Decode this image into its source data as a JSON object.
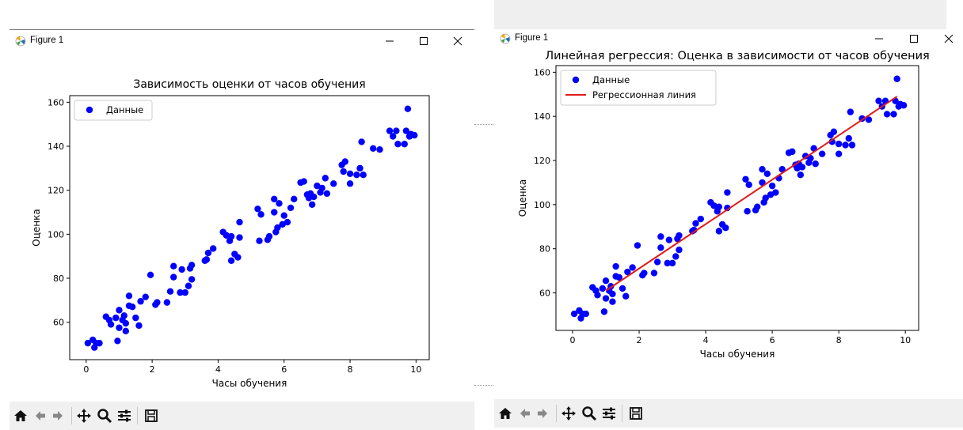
{
  "left_window": {
    "title": "Figure 1",
    "plot_title": "Зависимость оценки от часов обучения",
    "xlabel": "Часы обучения",
    "ylabel": "Оценка",
    "legend": [
      "Данные"
    ]
  },
  "right_window": {
    "title": "Figure 1",
    "plot_title": "Линейная регрессия: Оценка в зависимости от часов обучения",
    "xlabel": "Часы обучения",
    "ylabel": "Оценка",
    "legend": [
      "Данные",
      "Регрессионная линия"
    ]
  },
  "toolbar": [
    "home-icon",
    "back-icon",
    "forward-icon",
    "pan-icon",
    "zoom-icon",
    "configure-icon",
    "save-icon"
  ],
  "colors": {
    "points": "#0000ff",
    "regression": "#e31a1c",
    "toolbar_bg": "#f0f0f0"
  },
  "chart_data": [
    {
      "type": "scatter",
      "title": "Зависимость оценки от часов обучения",
      "xlabel": "Часы обучения",
      "ylabel": "Оценка",
      "xlim": [
        -0.5,
        10.4
      ],
      "ylim": [
        43,
        163
      ],
      "xticks": [
        0,
        2,
        4,
        6,
        8,
        10
      ],
      "yticks": [
        60,
        80,
        100,
        120,
        140,
        160
      ],
      "legend_position": "top-left",
      "series": [
        {
          "name": "Данные",
          "points": [
            [
              0.05,
              50.5
            ],
            [
              0.2,
              52
            ],
            [
              0.25,
              48.5
            ],
            [
              0.3,
              50.5
            ],
            [
              0.4,
              50.5
            ],
            [
              0.6,
              62.5
            ],
            [
              0.7,
              61
            ],
            [
              0.75,
              59
            ],
            [
              0.9,
              62
            ],
            [
              0.95,
              51.5
            ],
            [
              1.0,
              65.5
            ],
            [
              1.0,
              57.5
            ],
            [
              1.1,
              61
            ],
            [
              1.15,
              63
            ],
            [
              1.2,
              59.5
            ],
            [
              1.2,
              56
            ],
            [
              1.3,
              72
            ],
            [
              1.3,
              67.5
            ],
            [
              1.4,
              67
            ],
            [
              1.5,
              62
            ],
            [
              1.6,
              58.5
            ],
            [
              1.65,
              69.5
            ],
            [
              1.8,
              71.5
            ],
            [
              1.95,
              81.5
            ],
            [
              2.1,
              68
            ],
            [
              2.15,
              69
            ],
            [
              2.45,
              69
            ],
            [
              2.55,
              74
            ],
            [
              2.65,
              85.5
            ],
            [
              2.65,
              80.5
            ],
            [
              2.85,
              73.5
            ],
            [
              2.9,
              84
            ],
            [
              3.0,
              73.5
            ],
            [
              3.1,
              76.5
            ],
            [
              3.15,
              84.5
            ],
            [
              3.2,
              79.5
            ],
            [
              3.2,
              86
            ],
            [
              3.6,
              88
            ],
            [
              3.65,
              88.5
            ],
            [
              3.7,
              91.5
            ],
            [
              3.85,
              93.5
            ],
            [
              4.15,
              101
            ],
            [
              4.25,
              99.5
            ],
            [
              4.35,
              97
            ],
            [
              4.4,
              99
            ],
            [
              4.4,
              88
            ],
            [
              4.5,
              91
            ],
            [
              4.6,
              89.5
            ],
            [
              4.65,
              98.5
            ],
            [
              4.65,
              105.5
            ],
            [
              5.2,
              111.5
            ],
            [
              5.25,
              97
            ],
            [
              5.3,
              109
            ],
            [
              5.5,
              97.5
            ],
            [
              5.55,
              99
            ],
            [
              5.7,
              110
            ],
            [
              5.7,
              116
            ],
            [
              5.75,
              101
            ],
            [
              5.8,
              103
            ],
            [
              5.85,
              114
            ],
            [
              5.95,
              104.5
            ],
            [
              6.0,
              108.5
            ],
            [
              6.1,
              105.5
            ],
            [
              6.2,
              112
            ],
            [
              6.3,
              116
            ],
            [
              6.5,
              123.5
            ],
            [
              6.6,
              124
            ],
            [
              6.7,
              118
            ],
            [
              6.75,
              116.5
            ],
            [
              6.8,
              118.5
            ],
            [
              6.85,
              113.5
            ],
            [
              6.9,
              117
            ],
            [
              7.0,
              122
            ],
            [
              7.1,
              119
            ],
            [
              7.15,
              121
            ],
            [
              7.25,
              125.5
            ],
            [
              7.3,
              118.5
            ],
            [
              7.5,
              123
            ],
            [
              7.75,
              131.5
            ],
            [
              7.85,
              133
            ],
            [
              7.8,
              128.5
            ],
            [
              8.0,
              127.5
            ],
            [
              8.0,
              123
            ],
            [
              8.2,
              127
            ],
            [
              8.3,
              130
            ],
            [
              8.35,
              142
            ],
            [
              8.4,
              127
            ],
            [
              8.7,
              139
            ],
            [
              8.9,
              138.5
            ],
            [
              9.2,
              147
            ],
            [
              9.3,
              144.5
            ],
            [
              9.4,
              147
            ],
            [
              9.45,
              141
            ],
            [
              9.65,
              141
            ],
            [
              9.7,
              147
            ],
            [
              9.75,
              157
            ],
            [
              9.8,
              144.5
            ],
            [
              9.85,
              145.5
            ],
            [
              9.95,
              145
            ]
          ]
        }
      ]
    },
    {
      "type": "scatter",
      "title": "Линейная регрессия: Оценка в зависимости от часов обучения",
      "xlabel": "Часы обучения",
      "ylabel": "Оценка",
      "xlim": [
        -0.5,
        10.4
      ],
      "ylim": [
        43,
        163
      ],
      "xticks": [
        0,
        2,
        4,
        6,
        8,
        10
      ],
      "yticks": [
        60,
        80,
        100,
        120,
        140,
        160
      ],
      "legend_position": "top-left",
      "series": [
        {
          "name": "Данные",
          "points": [
            [
              0.05,
              50.5
            ],
            [
              0.2,
              52
            ],
            [
              0.25,
              48.5
            ],
            [
              0.3,
              50.5
            ],
            [
              0.4,
              50.5
            ],
            [
              0.6,
              62.5
            ],
            [
              0.7,
              61
            ],
            [
              0.75,
              59
            ],
            [
              0.9,
              62
            ],
            [
              0.95,
              51.5
            ],
            [
              1.0,
              65.5
            ],
            [
              1.0,
              57.5
            ],
            [
              1.1,
              61
            ],
            [
              1.15,
              63
            ],
            [
              1.2,
              59.5
            ],
            [
              1.2,
              56
            ],
            [
              1.3,
              72
            ],
            [
              1.3,
              67.5
            ],
            [
              1.4,
              67
            ],
            [
              1.5,
              62
            ],
            [
              1.6,
              58.5
            ],
            [
              1.65,
              69.5
            ],
            [
              1.8,
              71.5
            ],
            [
              1.95,
              81.5
            ],
            [
              2.1,
              68
            ],
            [
              2.15,
              69
            ],
            [
              2.45,
              69
            ],
            [
              2.55,
              74
            ],
            [
              2.65,
              85.5
            ],
            [
              2.65,
              80.5
            ],
            [
              2.85,
              73.5
            ],
            [
              2.9,
              84
            ],
            [
              3.0,
              73.5
            ],
            [
              3.1,
              76.5
            ],
            [
              3.15,
              84.5
            ],
            [
              3.2,
              79.5
            ],
            [
              3.2,
              86
            ],
            [
              3.6,
              88
            ],
            [
              3.65,
              88.5
            ],
            [
              3.7,
              91.5
            ],
            [
              3.85,
              93.5
            ],
            [
              4.15,
              101
            ],
            [
              4.25,
              99.5
            ],
            [
              4.35,
              97
            ],
            [
              4.4,
              99
            ],
            [
              4.4,
              88
            ],
            [
              4.5,
              91
            ],
            [
              4.6,
              89.5
            ],
            [
              4.65,
              98.5
            ],
            [
              4.65,
              105.5
            ],
            [
              5.2,
              111.5
            ],
            [
              5.25,
              97
            ],
            [
              5.3,
              109
            ],
            [
              5.5,
              97.5
            ],
            [
              5.55,
              99
            ],
            [
              5.7,
              110
            ],
            [
              5.7,
              116
            ],
            [
              5.75,
              101
            ],
            [
              5.8,
              103
            ],
            [
              5.85,
              114
            ],
            [
              5.95,
              104.5
            ],
            [
              6.0,
              108.5
            ],
            [
              6.1,
              105.5
            ],
            [
              6.2,
              112
            ],
            [
              6.3,
              116
            ],
            [
              6.5,
              123.5
            ],
            [
              6.6,
              124
            ],
            [
              6.7,
              118
            ],
            [
              6.75,
              116.5
            ],
            [
              6.8,
              118.5
            ],
            [
              6.85,
              113.5
            ],
            [
              6.9,
              117
            ],
            [
              7.0,
              122
            ],
            [
              7.1,
              119
            ],
            [
              7.15,
              121
            ],
            [
              7.25,
              125.5
            ],
            [
              7.3,
              118.5
            ],
            [
              7.5,
              123
            ],
            [
              7.75,
              131.5
            ],
            [
              7.85,
              133
            ],
            [
              7.8,
              128.5
            ],
            [
              8.0,
              127.5
            ],
            [
              8.0,
              123
            ],
            [
              8.2,
              127
            ],
            [
              8.3,
              130
            ],
            [
              8.35,
              142
            ],
            [
              8.4,
              127
            ],
            [
              8.7,
              139
            ],
            [
              8.9,
              138.5
            ],
            [
              9.2,
              147
            ],
            [
              9.3,
              144.5
            ],
            [
              9.4,
              147
            ],
            [
              9.45,
              141
            ],
            [
              9.65,
              141
            ],
            [
              9.7,
              147
            ],
            [
              9.75,
              157
            ],
            [
              9.8,
              144.5
            ],
            [
              9.85,
              145.5
            ],
            [
              9.95,
              145
            ]
          ]
        },
        {
          "name": "Регрессионная линия",
          "type": "line",
          "x": [
            1.0,
            9.75
          ],
          "y": [
            61,
            149
          ]
        }
      ]
    }
  ]
}
